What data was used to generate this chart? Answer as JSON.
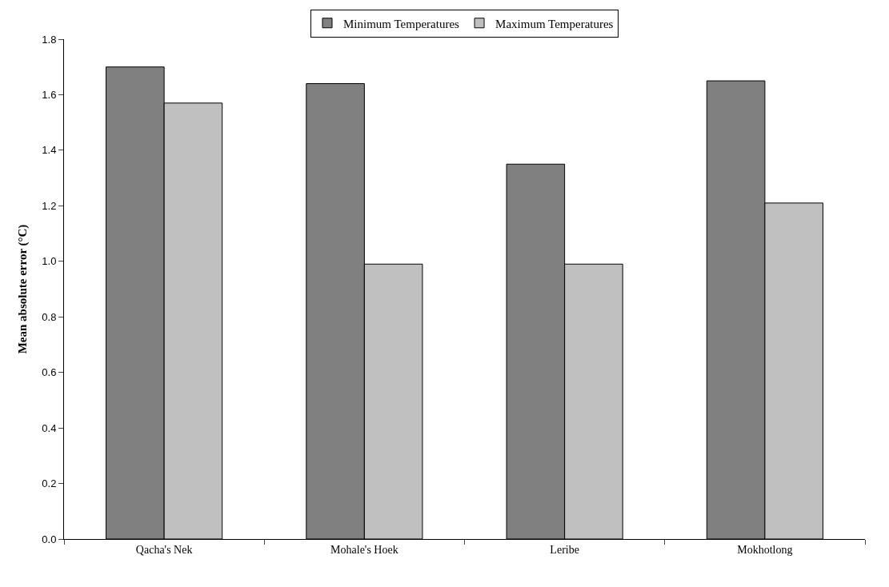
{
  "chart_data": {
    "type": "bar",
    "ylabel": "Mean absolute error (°C)",
    "categories": [
      "Qacha's Nek",
      "Mohale's Hoek",
      "Leribe",
      "Mokhotlong"
    ],
    "series": [
      {
        "name": "Minimum Temperatures",
        "color": "#808080",
        "values": [
          1.7,
          1.64,
          1.35,
          1.65
        ]
      },
      {
        "name": "Maximum Temperatures",
        "color": "#c0c0c0",
        "values": [
          1.57,
          0.99,
          0.99,
          1.21
        ]
      }
    ],
    "ylim": [
      0,
      1.8
    ],
    "yticks": [
      "0.0",
      0.2,
      0.4,
      0.6,
      0.8,
      "1.0",
      1.2,
      1.4,
      1.6,
      1.8
    ],
    "legend": "top"
  }
}
